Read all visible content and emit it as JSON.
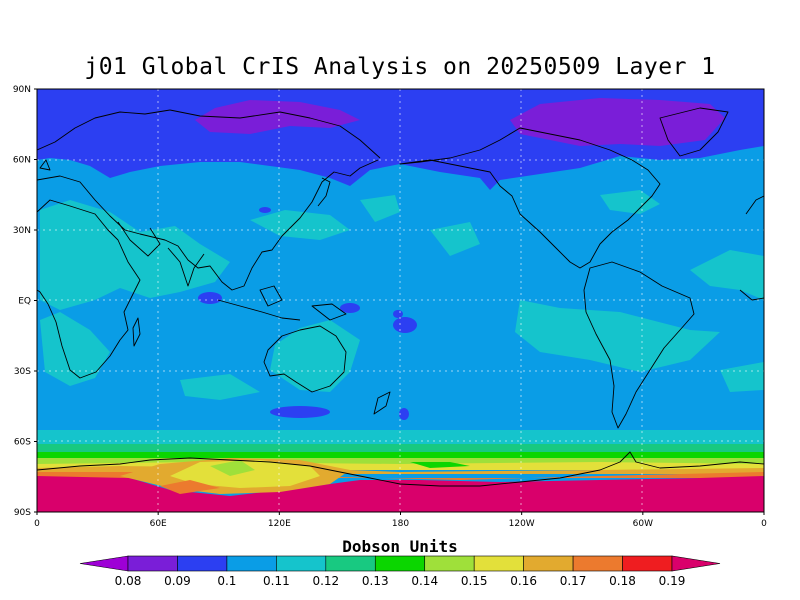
{
  "title": "j01 Global CrIS Analysis on 20250509 Layer 1",
  "lat_labels": [
    "90N",
    "60N",
    "30N",
    "EQ",
    "30S",
    "60S",
    "90S"
  ],
  "lon_labels": [
    "0",
    "60E",
    "120E",
    "180",
    "120W",
    "60W",
    "0"
  ],
  "colorbar": {
    "units": "Dobson Units",
    "tick_labels": [
      "0.08",
      "0.09",
      "0.1",
      "0.11",
      "0.12",
      "0.13",
      "0.14",
      "0.15",
      "0.16",
      "0.17",
      "0.18",
      "0.19"
    ],
    "colors": [
      "#9e00d6",
      "#7a1ed8",
      "#2c3ff2",
      "#0a9de6",
      "#15c4cc",
      "#18c981",
      "#0bd600",
      "#9fe03a",
      "#e3e03a",
      "#e2aa2f",
      "#ec7a2e",
      "#ef1d20",
      "#d9006b"
    ]
  },
  "chart_data": {
    "type": "heatmap",
    "title": "j01 Global CrIS Analysis on 20250509 Layer 1",
    "xlabel": "",
    "ylabel": "",
    "x_ticks": [
      "0",
      "60E",
      "120E",
      "180",
      "120W",
      "60W",
      "0"
    ],
    "y_ticks": [
      "90N",
      "60N",
      "30N",
      "EQ",
      "30S",
      "60S",
      "90S"
    ],
    "colorbar_label": "Dobson Units",
    "colorbar_ticks": [
      0.08,
      0.09,
      0.1,
      0.11,
      0.12,
      0.13,
      0.14,
      0.15,
      0.16,
      0.17,
      0.18,
      0.19
    ],
    "zonal_bands": [
      {
        "lat_range": [
          64,
          90
        ],
        "value_approx": 0.095
      },
      {
        "lat_range": [
          -60,
          64
        ],
        "value_approx": 0.11
      },
      {
        "lat_range": [
          -66,
          -60
        ],
        "value_approx": 0.12
      },
      {
        "lat_range": [
          -69,
          -66
        ],
        "value_approx": 0.14
      },
      {
        "lat_range": [
          -75,
          -69
        ],
        "value_approx": 0.16
      },
      {
        "lat_range": [
          -90,
          -75
        ],
        "value_approx": 0.19
      }
    ]
  }
}
